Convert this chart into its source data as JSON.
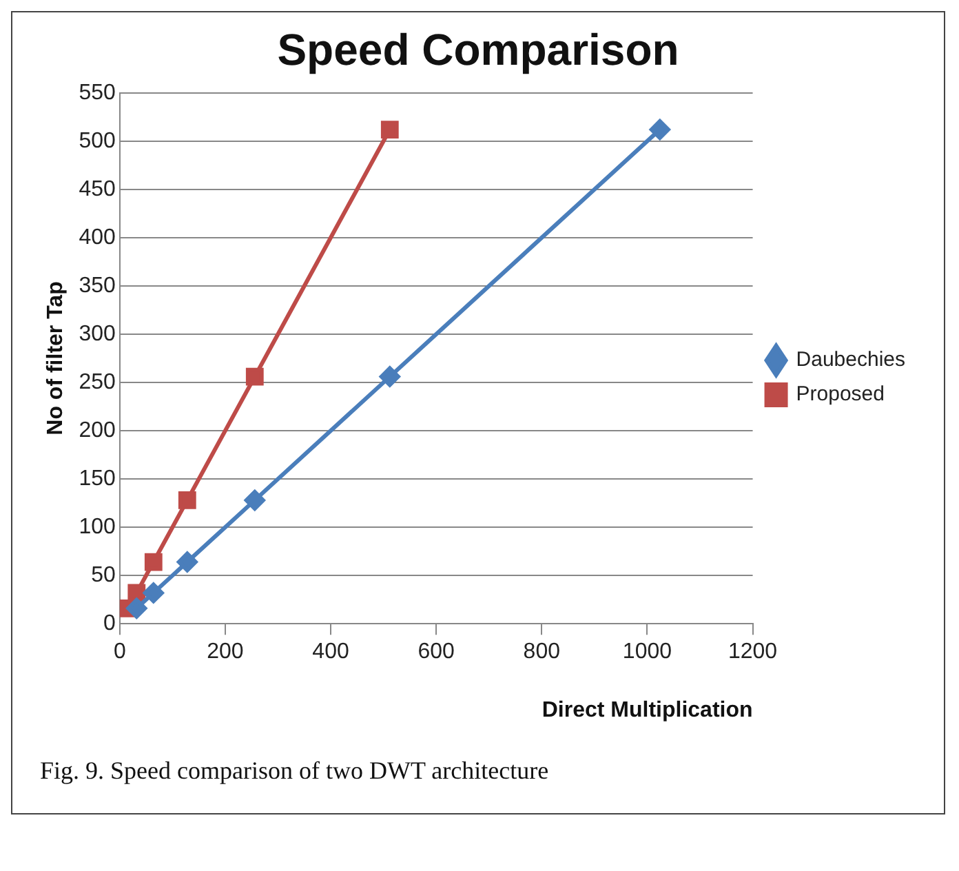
{
  "chart_data": {
    "type": "line",
    "title": "Speed Comparison",
    "xlabel": "Direct Multiplication",
    "ylabel": "No of filter Tap",
    "series": [
      {
        "name": "Daubechies",
        "color": "#4a7ebb",
        "marker": "diamond",
        "x": [
          32,
          64,
          128,
          256,
          512,
          1024
        ],
        "values": [
          16,
          32,
          64,
          128,
          256,
          512
        ]
      },
      {
        "name": "Proposed",
        "color": "#be4b48",
        "marker": "square",
        "x": [
          16,
          32,
          64,
          128,
          256,
          512
        ],
        "values": [
          16,
          32,
          64,
          128,
          256,
          512
        ]
      }
    ],
    "xlim": [
      0,
      1200
    ],
    "xticks": [
      0,
      200,
      400,
      600,
      800,
      1000,
      1200
    ],
    "ylim": [
      0,
      550
    ],
    "yticks": [
      0,
      50,
      100,
      150,
      200,
      250,
      300,
      350,
      400,
      450,
      500,
      550
    ],
    "grid": "y",
    "legend": "right",
    "line_style": "solid",
    "annotations": [
      "Fig. 9. Speed comparison of two DWT architecture"
    ]
  }
}
